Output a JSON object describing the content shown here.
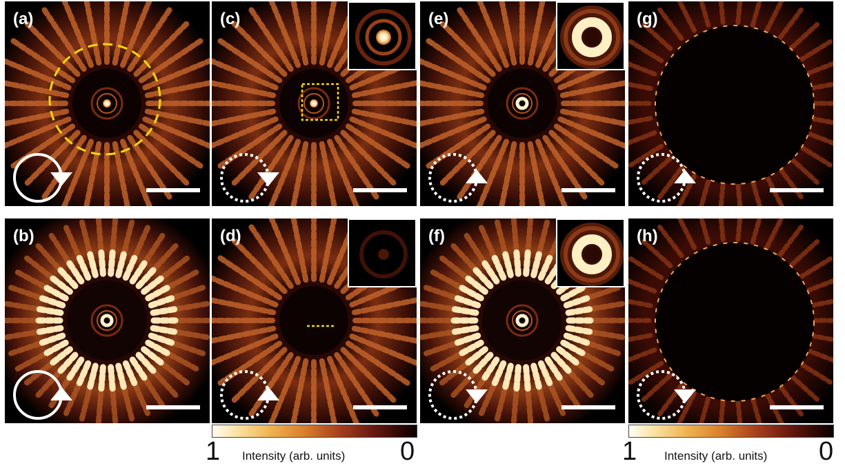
{
  "panels": [
    {
      "label": "(a)",
      "type": "ring",
      "arrow": "down",
      "circle": "solid",
      "dashed_circle": true
    },
    {
      "label": "(c)",
      "type": "ring",
      "arrow": "down",
      "circle": "dotted",
      "inset": "spot",
      "inset_box": true
    },
    {
      "label": "(e)",
      "type": "ring",
      "arrow": "up",
      "circle": "dotted",
      "inset": "donut"
    },
    {
      "label": "(g)",
      "type": "hole",
      "arrow": "up",
      "circle": "dotted"
    },
    {
      "label": "(b)",
      "type": "bright",
      "arrow": "up",
      "circle": "solid"
    },
    {
      "label": "(d)",
      "type": "ring",
      "arrow": "up",
      "circle": "dotted",
      "inset": "dim",
      "inset_line": true
    },
    {
      "label": "(f)",
      "type": "bright",
      "arrow": "down",
      "circle": "dotted",
      "inset": "donut"
    },
    {
      "label": "(h)",
      "type": "hole",
      "arrow": "down",
      "circle": "dotted"
    }
  ],
  "colorbars": [
    {
      "min_label": "1",
      "max_label": "0",
      "title": "Intensity (arb. units)"
    },
    {
      "min_label": "1",
      "max_label": "0",
      "title": "Intensity (arb. units)"
    }
  ],
  "colors": {
    "accent_yellow": "#f5d90a",
    "ring": "#d46a2a",
    "bright": "#fff1c9"
  }
}
